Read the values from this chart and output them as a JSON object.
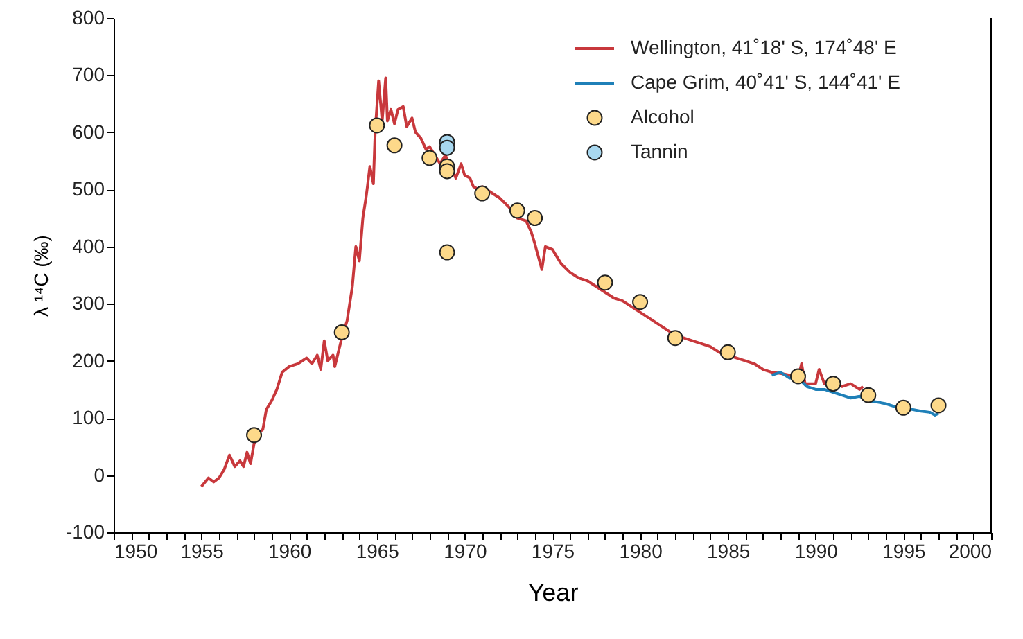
{
  "chart_data": {
    "type": "line",
    "xlabel": "Year",
    "ylabel": "λ ¹⁴C (‰)",
    "xlim": [
      1950,
      2000
    ],
    "ylim": [
      -100,
      800
    ],
    "xticks": [
      1950,
      {
        "value": 1951,
        "label": null
      },
      {
        "value": 1952,
        "label": null
      },
      {
        "value": 1953,
        "label": null
      },
      {
        "value": 1954,
        "label": null
      },
      1955,
      {
        "value": 1956,
        "label": null
      },
      {
        "value": 1957,
        "label": null
      },
      {
        "value": 1958,
        "label": null
      },
      {
        "value": 1959,
        "label": null
      },
      1960,
      {
        "value": 1961,
        "label": null
      },
      {
        "value": 1962,
        "label": null
      },
      {
        "value": 1963,
        "label": null
      },
      {
        "value": 1964,
        "label": null
      },
      1965,
      {
        "value": 1966,
        "label": null
      },
      {
        "value": 1967,
        "label": null
      },
      {
        "value": 1968,
        "label": null
      },
      {
        "value": 1969,
        "label": null
      },
      1970,
      {
        "value": 1971,
        "label": null
      },
      {
        "value": 1972,
        "label": null
      },
      {
        "value": 1973,
        "label": null
      },
      {
        "value": 1974,
        "label": null
      },
      1975,
      {
        "value": 1976,
        "label": null
      },
      {
        "value": 1977,
        "label": null
      },
      {
        "value": 1978,
        "label": null
      },
      {
        "value": 1979,
        "label": null
      },
      1980,
      {
        "value": 1981,
        "label": null
      },
      {
        "value": 1982,
        "label": null
      },
      {
        "value": 1983,
        "label": null
      },
      {
        "value": 1984,
        "label": null
      },
      1985,
      {
        "value": 1986,
        "label": null
      },
      {
        "value": 1987,
        "label": null
      },
      {
        "value": 1988,
        "label": null
      },
      {
        "value": 1989,
        "label": null
      },
      1990,
      {
        "value": 1991,
        "label": null
      },
      {
        "value": 1992,
        "label": null
      },
      {
        "value": 1993,
        "label": null
      },
      {
        "value": 1994,
        "label": null
      },
      1995,
      {
        "value": 1996,
        "label": null
      },
      {
        "value": 1997,
        "label": null
      },
      {
        "value": 1998,
        "label": null
      },
      {
        "value": 1999,
        "label": null
      },
      2000
    ],
    "yticks": [
      -100,
      0,
      100,
      200,
      300,
      400,
      500,
      600,
      700,
      800
    ],
    "grid": false,
    "legend": "top right",
    "series": [
      {
        "name": "Wellington, 41˚18' S, 174˚48' E",
        "color": "#c8383c",
        "line_style": "solid",
        "x": [
          1955.0,
          1955.4,
          1955.7,
          1956.0,
          1956.3,
          1956.6,
          1956.9,
          1957.2,
          1957.4,
          1957.6,
          1957.8,
          1958.0,
          1958.3,
          1958.5,
          1958.7,
          1959.0,
          1959.3,
          1959.6,
          1960.0,
          1960.5,
          1961.0,
          1961.3,
          1961.6,
          1961.8,
          1962.0,
          1962.2,
          1962.5,
          1962.6,
          1963.0,
          1963.3,
          1963.6,
          1963.8,
          1964.0,
          1964.2,
          1964.4,
          1964.6,
          1964.8,
          1964.9,
          1965.1,
          1965.3,
          1965.5,
          1965.6,
          1965.8,
          1966.0,
          1966.2,
          1966.5,
          1966.7,
          1967.0,
          1967.2,
          1967.5,
          1967.8,
          1968.0,
          1968.3,
          1968.6,
          1968.9,
          1969.2,
          1969.5,
          1969.8,
          1970.0,
          1970.3,
          1970.5,
          1970.8,
          1971.0,
          1971.5,
          1972.0,
          1972.5,
          1973.0,
          1973.5,
          1973.8,
          1974.0,
          1974.4,
          1974.6,
          1975.0,
          1975.5,
          1976.0,
          1976.5,
          1977.0,
          1977.5,
          1978.0,
          1978.5,
          1979.0,
          1979.5,
          1980.0,
          1980.5,
          1981.0,
          1981.5,
          1982.0,
          1982.5,
          1983.0,
          1983.5,
          1984.0,
          1984.5,
          1985.0,
          1985.5,
          1986.0,
          1986.5,
          1987.0,
          1987.5,
          1988.0,
          1988.5,
          1989.0,
          1989.2,
          1989.4,
          1990.0,
          1990.2,
          1990.5,
          1991.0,
          1991.5,
          1992.0,
          1992.5,
          1992.7
        ],
        "values": [
          -20,
          -5,
          -12,
          -5,
          10,
          35,
          15,
          25,
          15,
          40,
          20,
          55,
          75,
          80,
          115,
          130,
          150,
          180,
          190,
          195,
          205,
          195,
          210,
          185,
          235,
          200,
          210,
          190,
          240,
          270,
          330,
          400,
          375,
          450,
          490,
          540,
          510,
          600,
          690,
          620,
          695,
          620,
          640,
          615,
          640,
          645,
          610,
          625,
          600,
          590,
          570,
          575,
          560,
          545,
          560,
          540,
          520,
          545,
          525,
          520,
          505,
          500,
          505,
          495,
          485,
          470,
          450,
          445,
          425,
          405,
          360,
          400,
          395,
          370,
          355,
          345,
          340,
          330,
          320,
          310,
          305,
          295,
          285,
          275,
          265,
          255,
          245,
          240,
          235,
          230,
          225,
          215,
          210,
          205,
          200,
          195,
          185,
          180,
          178,
          175,
          170,
          195,
          160,
          160,
          185,
          160,
          165,
          155,
          160,
          150,
          155
        ]
      },
      {
        "name": "Cape Grim, 40˚41' S, 144˚41' E",
        "color": "#1f80b8",
        "line_style": "solid",
        "x": [
          1987.5,
          1988.0,
          1988.5,
          1989.0,
          1989.5,
          1990.0,
          1990.5,
          1991.0,
          1991.5,
          1992.0,
          1992.5,
          1993.0,
          1993.5,
          1994.0,
          1994.5,
          1995.0,
          1995.5,
          1996.0,
          1996.5,
          1996.8,
          1997.0
        ],
        "values": [
          175,
          180,
          170,
          170,
          155,
          150,
          150,
          145,
          140,
          135,
          138,
          130,
          128,
          125,
          120,
          118,
          115,
          112,
          110,
          105,
          108
        ]
      },
      {
        "name": "Alcohol",
        "type": "scatter",
        "color": "#fdd98a",
        "marker": "circle",
        "x": [
          1958,
          1963,
          1965,
          1966,
          1968,
          1969,
          1969,
          1969,
          1971,
          1973,
          1974,
          1978,
          1980,
          1982,
          1985,
          1989,
          1991,
          1993,
          1995,
          1997
        ],
        "values": [
          70,
          250,
          612,
          577,
          555,
          540,
          532,
          390,
          493,
          463,
          450,
          337,
          303,
          240,
          215,
          173,
          160,
          140,
          118,
          122
        ]
      },
      {
        "name": "Tannin",
        "type": "scatter",
        "color": "#a8d8f0",
        "marker": "circle",
        "x": [
          1969,
          1969
        ],
        "values": [
          583,
          573
        ]
      }
    ]
  }
}
